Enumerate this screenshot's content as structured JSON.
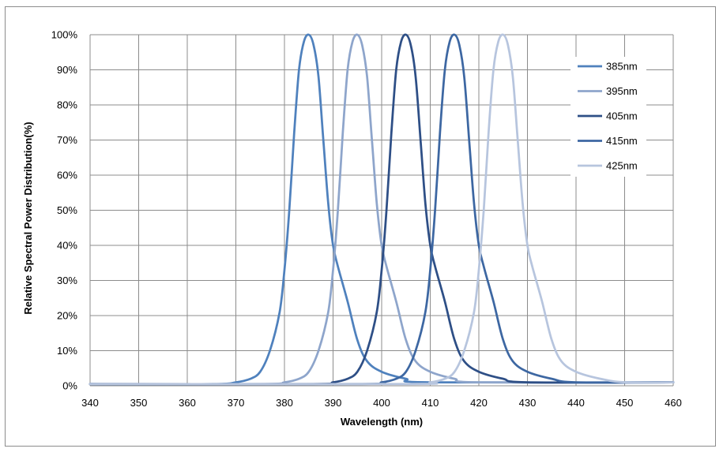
{
  "chart_data": {
    "type": "line",
    "title": "",
    "xlabel": "Wavelength (nm)",
    "ylabel": "Relative Spectral Power Distribution(%)",
    "xlim": [
      340,
      460
    ],
    "ylim": [
      0,
      100
    ],
    "x_ticks": [
      340,
      350,
      360,
      370,
      380,
      390,
      400,
      410,
      420,
      430,
      440,
      450,
      460
    ],
    "y_ticks": [
      0,
      10,
      20,
      30,
      40,
      50,
      60,
      70,
      80,
      90,
      100
    ],
    "y_tick_labels": [
      "0%",
      "10%",
      "20%",
      "30%",
      "40%",
      "50%",
      "60%",
      "70%",
      "80%",
      "90%",
      "100%"
    ],
    "grid": true,
    "legend_position": "top-right",
    "peak_offsets": [
      -20,
      -15,
      -12,
      -10,
      -8,
      -6,
      -5,
      -4,
      -3,
      -2,
      -1,
      0,
      1,
      2,
      3,
      4,
      5,
      6,
      8,
      10,
      12,
      15,
      20,
      25
    ],
    "peak_shape": [
      0.5,
      1,
      2,
      4,
      10,
      21,
      33,
      50,
      72,
      90,
      98,
      100,
      97,
      88,
      70,
      52,
      40,
      34,
      24,
      13,
      7,
      4,
      2,
      1
    ],
    "series": [
      {
        "name": "385nm",
        "peak": 385,
        "color": "#4f81bd"
      },
      {
        "name": "395nm",
        "peak": 395,
        "color": "#8ea5cb"
      },
      {
        "name": "405nm",
        "peak": 405,
        "color": "#2e4f86"
      },
      {
        "name": "415nm",
        "peak": 415,
        "color": "#3d67a2"
      },
      {
        "name": "425nm",
        "peak": 425,
        "color": "#b7c5de"
      }
    ]
  }
}
